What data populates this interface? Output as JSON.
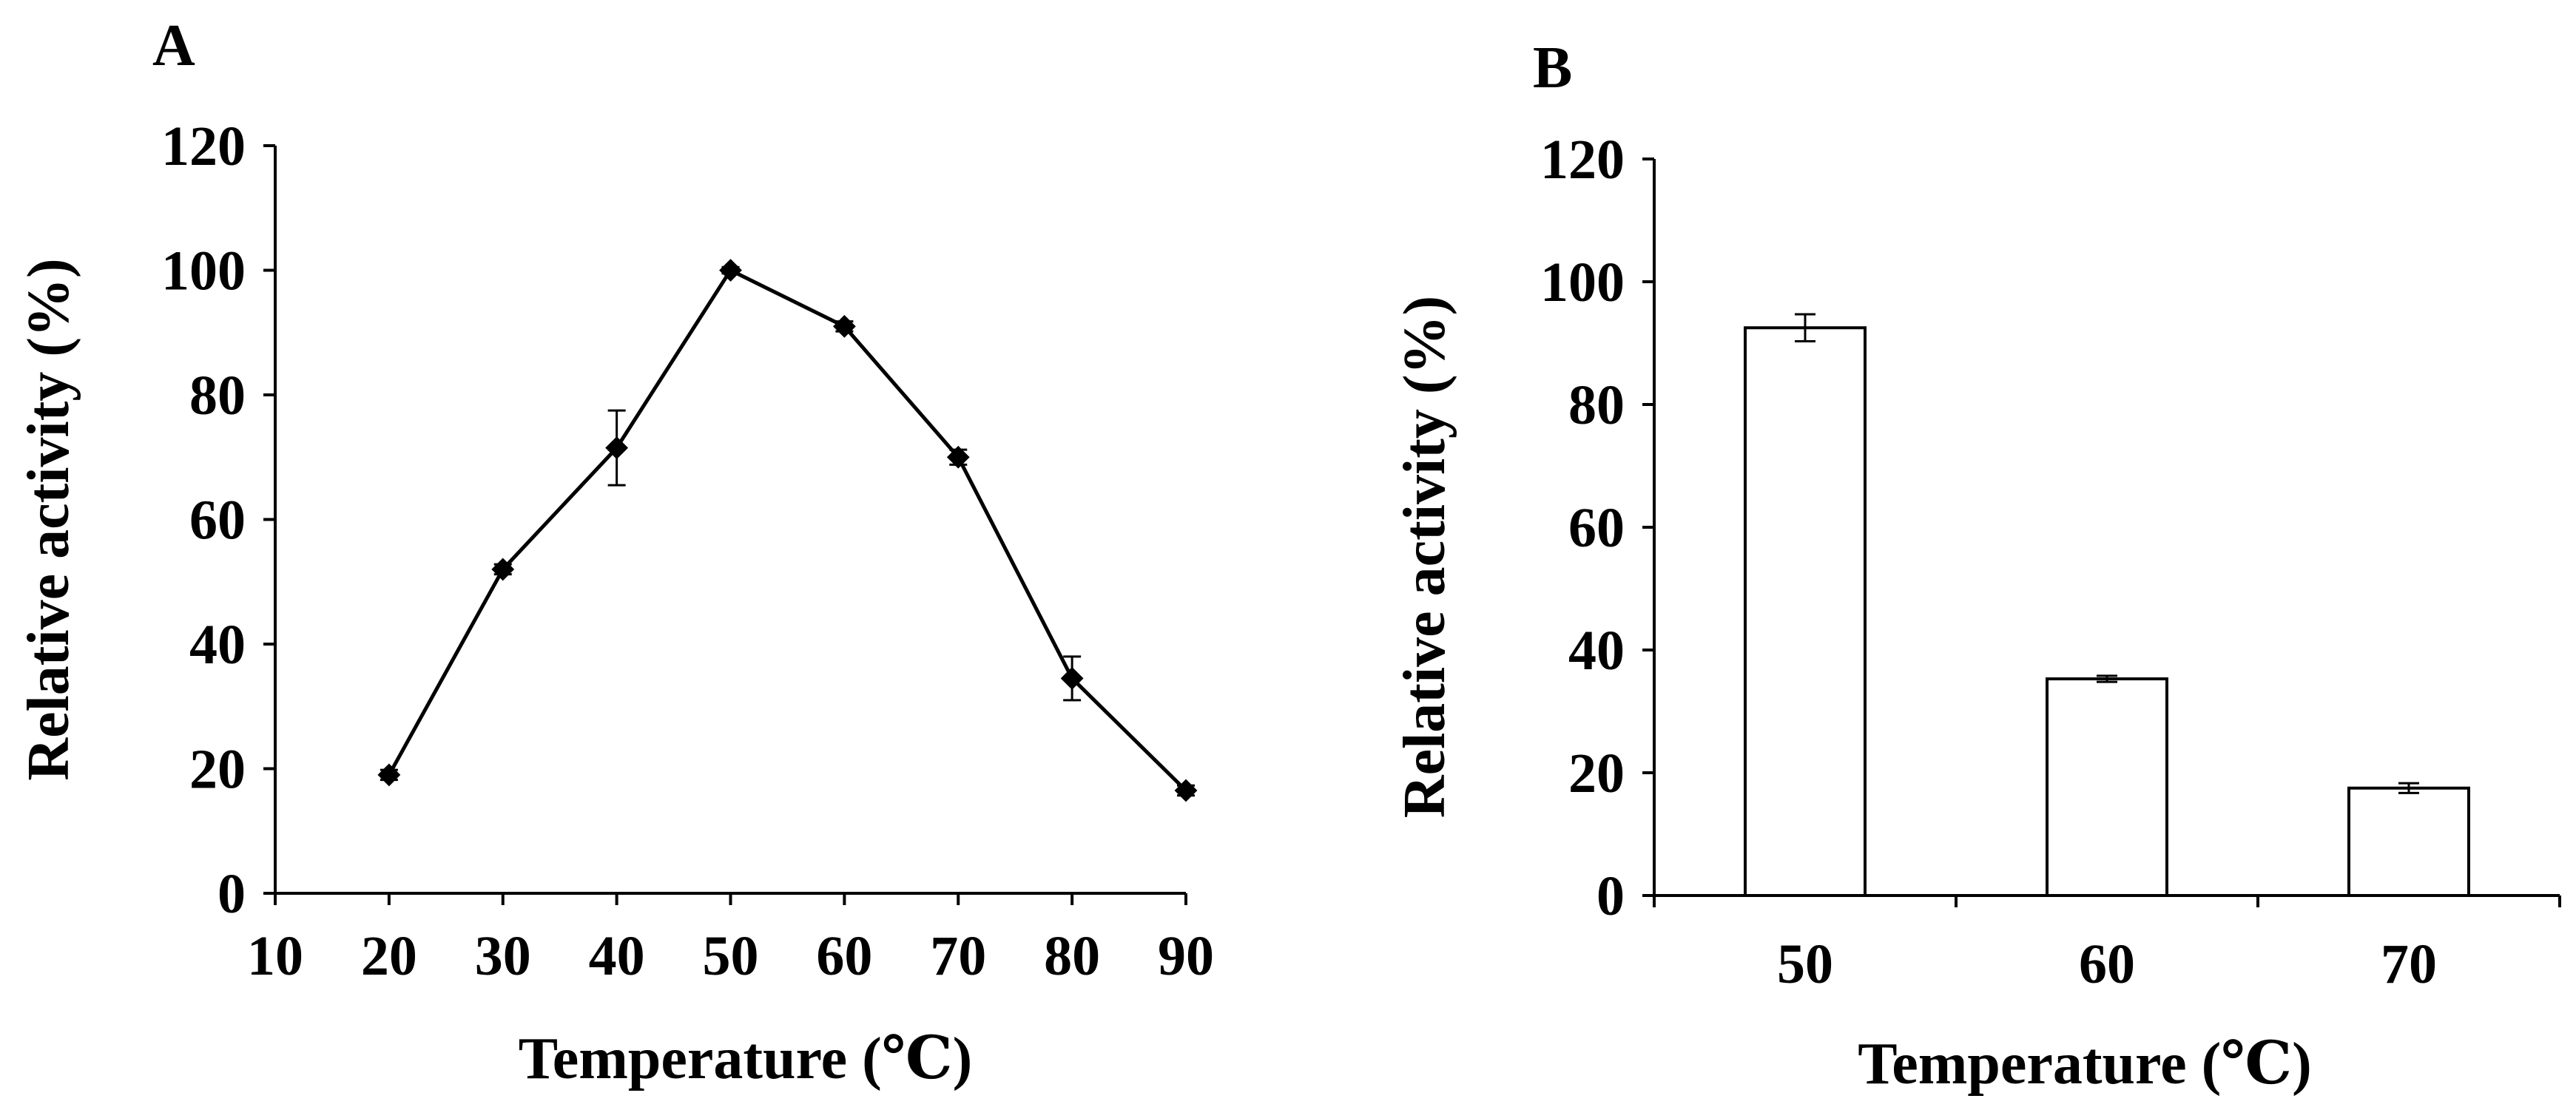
{
  "chart_data": [
    {
      "panel": "A",
      "type": "line",
      "xlabel": "Temperature (℃)",
      "ylabel": "Relative activity (%)",
      "xlim": [
        10,
        90
      ],
      "ylim": [
        0,
        120
      ],
      "xticks": [
        10,
        20,
        30,
        40,
        50,
        60,
        70,
        80,
        90
      ],
      "yticks": [
        0,
        20,
        40,
        60,
        80,
        100,
        120
      ],
      "grid": false,
      "series": [
        {
          "name": "Relative activity",
          "marker": "diamond",
          "color": "#000000",
          "x": [
            20,
            30,
            40,
            50,
            60,
            70,
            80,
            90
          ],
          "y": [
            19,
            52,
            71.5,
            100,
            91,
            70,
            34.5,
            16.5
          ],
          "error": [
            0.8,
            0.8,
            6,
            0.5,
            0.8,
            1.2,
            3.5,
            0.8
          ]
        }
      ]
    },
    {
      "panel": "B",
      "type": "bar",
      "xlabel": "Temperature (℃)",
      "ylabel": "Relative activity (%)",
      "ylim": [
        0,
        120
      ],
      "yticks": [
        0,
        20,
        40,
        60,
        80,
        100,
        120
      ],
      "grid": false,
      "categories": [
        "50",
        "60",
        "70"
      ],
      "values": [
        92.5,
        35.3,
        17.5
      ],
      "error": [
        2.2,
        0.5,
        0.8
      ],
      "bar_fill": "#ffffff",
      "bar_stroke": "#000000"
    }
  ]
}
